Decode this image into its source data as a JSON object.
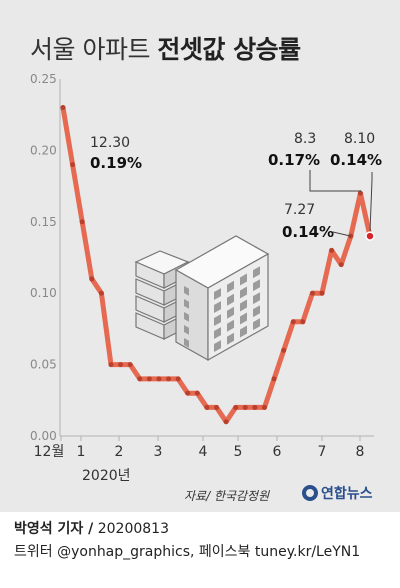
{
  "title": {
    "part1": "서울 아파트",
    "part2": "전셋값 상승률"
  },
  "source": "자료/ 한국감정원",
  "logo": "연합뉴스",
  "credit": {
    "reporter": "박영석 기자 /",
    "date": "20200813",
    "line2": "트위터 @yonhap_graphics, 페이스북 tuney.kr/LeYN1"
  },
  "colors": {
    "line": "#e56a51",
    "last_point": "#d7262a",
    "background": "#e9e9e9"
  },
  "chart_data": {
    "type": "line",
    "ylim": [
      0,
      0.25
    ],
    "yticks": [
      "0.00",
      "0.05",
      "0.10",
      "0.15",
      "0.20",
      "0.25"
    ],
    "xticks": [
      "12월",
      "1",
      "2",
      "3",
      "4",
      "5",
      "6",
      "7",
      "8"
    ],
    "xtick_sub": "2020년",
    "grid": false,
    "values": [
      0.23,
      0.19,
      0.15,
      0.11,
      0.1,
      0.05,
      0.05,
      0.05,
      0.04,
      0.04,
      0.04,
      0.04,
      0.04,
      0.03,
      0.03,
      0.02,
      0.02,
      0.01,
      0.02,
      0.02,
      0.02,
      0.02,
      0.04,
      0.06,
      0.08,
      0.08,
      0.1,
      0.1,
      0.13,
      0.12,
      0.14,
      0.17,
      0.14
    ],
    "annotations": [
      {
        "date": "12.30",
        "value": "0.19%"
      },
      {
        "date": "7.27",
        "value": "0.14%"
      },
      {
        "date": "8.3",
        "value": "0.17%"
      },
      {
        "date": "8.10",
        "value": "0.14%"
      }
    ],
    "illustration": "apartment-buildings"
  }
}
